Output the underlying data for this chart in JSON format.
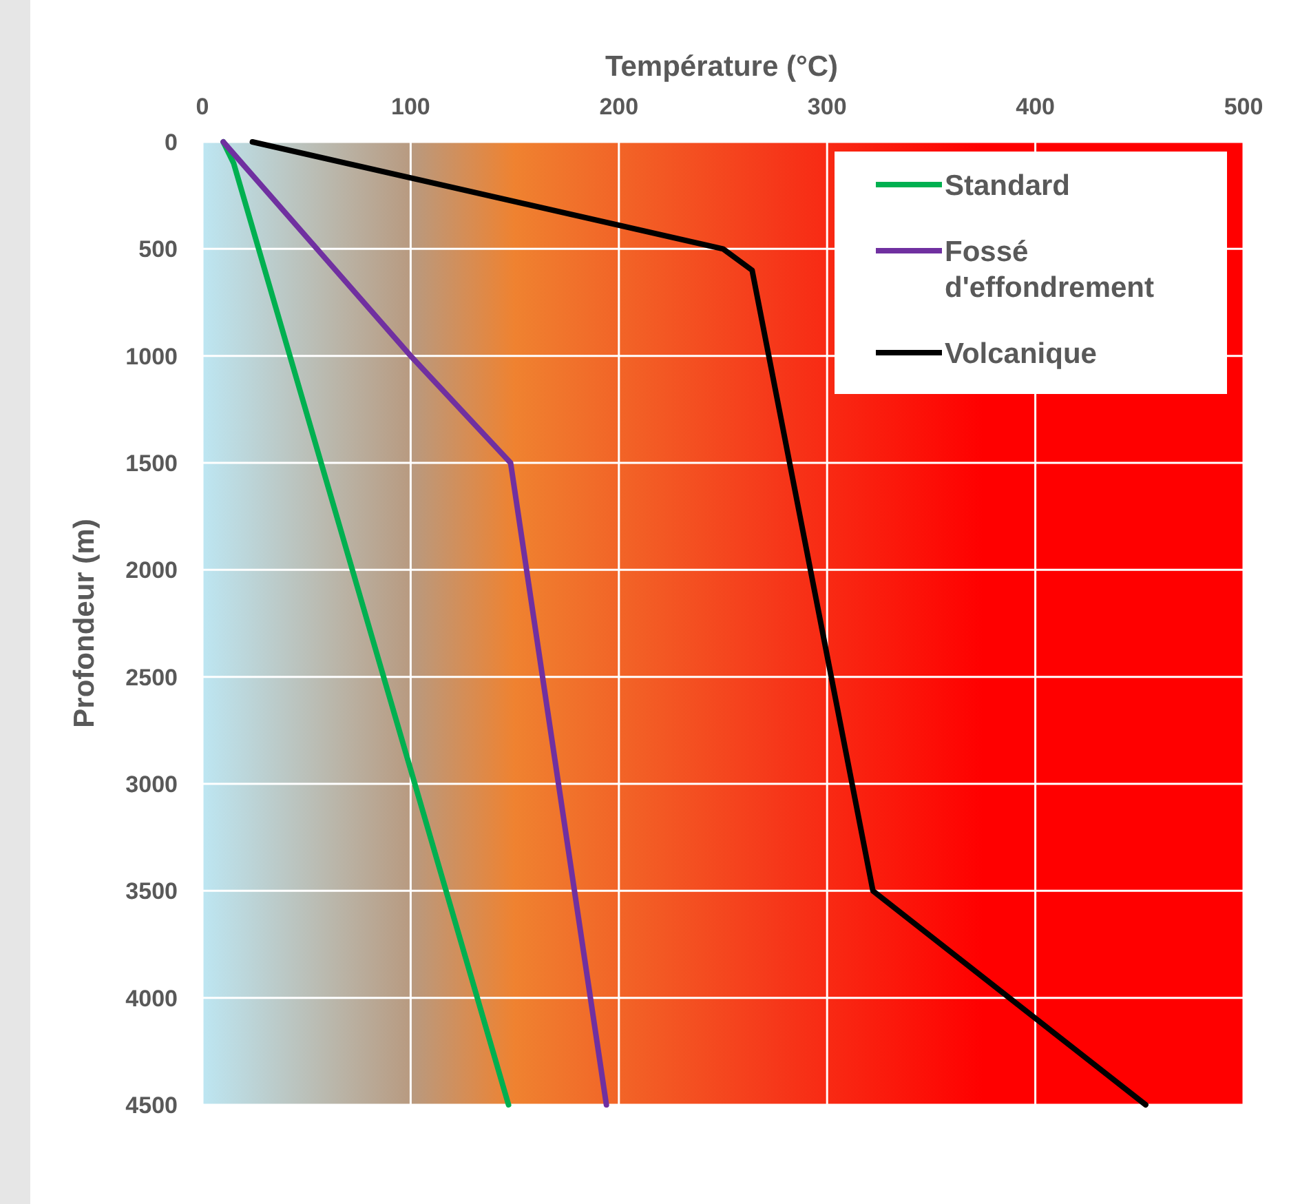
{
  "chart_data": {
    "type": "line",
    "xlabel": "Température (°C)",
    "ylabel": "Profondeur (m)",
    "xlim": [
      0,
      500
    ],
    "xticks": [
      0,
      100,
      200,
      300,
      400,
      500
    ],
    "ylim": [
      4500,
      0
    ],
    "yticks": [
      0,
      500,
      1000,
      1500,
      2000,
      2500,
      3000,
      3500,
      4000,
      4500
    ],
    "grid": true,
    "legend": "top right",
    "marker": "none",
    "line_style": "solid",
    "series": [
      {
        "name": "Standard",
        "color": "#00b050",
        "x": [
          10,
          15,
          147
        ],
        "values": [
          0,
          100,
          4500
        ]
      },
      {
        "name": "Fossé d'effondrement",
        "color": "#7030a0",
        "x": [
          10,
          28,
          100,
          148,
          194
        ],
        "values": [
          0,
          200,
          1000,
          1500,
          4500
        ]
      },
      {
        "name": "Volcanique",
        "color": "#000000",
        "x": [
          24,
          250,
          264,
          322,
          453
        ],
        "values": [
          0,
          500,
          600,
          3500,
          4500
        ]
      }
    ]
  }
}
